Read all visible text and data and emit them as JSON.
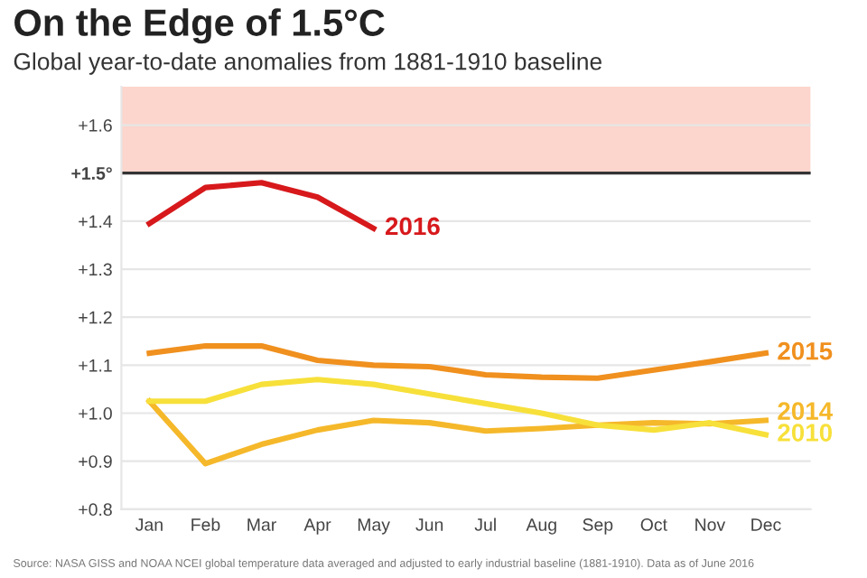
{
  "chart_data": {
    "type": "line",
    "title": "On the Edge of 1.5°C",
    "subtitle": "Global year-to-date anomalies from 1881-1910 baseline",
    "categories": [
      "Jan",
      "Feb",
      "Mar",
      "Apr",
      "May",
      "Jun",
      "Jul",
      "Aug",
      "Sep",
      "Oct",
      "Nov",
      "Dec"
    ],
    "series": [
      {
        "name": "2016",
        "color": "#d7191c",
        "values": [
          1.395,
          1.47,
          1.48,
          1.45,
          1.385,
          null,
          null,
          null,
          null,
          null,
          null,
          null
        ]
      },
      {
        "name": "2015",
        "color": "#f0901e",
        "values": [
          1.125,
          1.14,
          1.14,
          1.11,
          1.1,
          1.097,
          1.08,
          1.075,
          1.073,
          1.09,
          1.107,
          1.125
        ]
      },
      {
        "name": "2014",
        "color": "#f5b82a",
        "values": [
          1.025,
          0.895,
          0.935,
          0.965,
          0.985,
          0.98,
          0.963,
          0.968,
          0.975,
          0.98,
          0.978,
          0.985
        ]
      },
      {
        "name": "2010",
        "color": "#f7e03a",
        "values": [
          1.025,
          1.025,
          1.06,
          1.07,
          1.06,
          1.04,
          1.02,
          1.0,
          0.975,
          0.965,
          0.98,
          0.955
        ]
      }
    ],
    "ylim": [
      0.8,
      1.68
    ],
    "yticks": [
      {
        "value": 0.8,
        "label": "+0.8"
      },
      {
        "value": 0.9,
        "label": "+0.9"
      },
      {
        "value": 1.0,
        "label": "+1.0"
      },
      {
        "value": 1.1,
        "label": "+1.1"
      },
      {
        "value": 1.2,
        "label": "+1.2"
      },
      {
        "value": 1.3,
        "label": "+1.3"
      },
      {
        "value": 1.4,
        "label": "+1.4"
      },
      {
        "value": 1.5,
        "label": "+1.5°"
      },
      {
        "value": 1.6,
        "label": "+1.6"
      }
    ],
    "ref_lines": [
      {
        "axis": "y",
        "value": 1.5,
        "color": "#333333"
      }
    ],
    "bands": [
      {
        "axis": "y",
        "from": 1.5,
        "to": 1.68,
        "color": "#fcd5cc"
      }
    ],
    "grid": "y",
    "legend": false,
    "marker": "none",
    "line_style": "solid",
    "annotations": [
      "Source: NASA GISS and NOAA NCEI global temperature data averaged and adjusted to early industrial baseline (1881-1910). Data as of June 2016"
    ]
  }
}
